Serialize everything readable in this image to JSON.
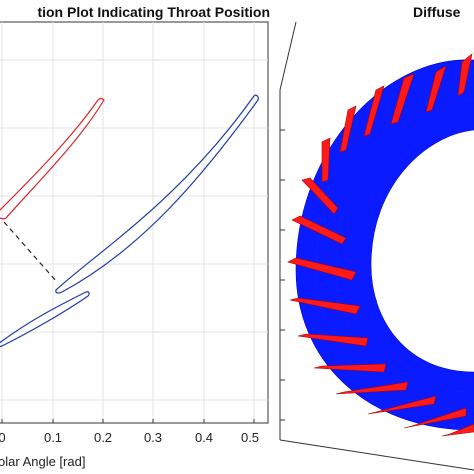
{
  "left_plot": {
    "title": "tion Plot Indicating Throat Position",
    "xlabel": "olar Angle [rad]",
    "x_ticks": [
      "0",
      "0.1",
      "0.2",
      "0.3",
      "0.4",
      "0.5"
    ]
  },
  "right_plot": {
    "title": "Diffuse"
  },
  "colors": {
    "red_blade": "#d62728",
    "blue_blade": "#1f3aa6",
    "diffuser_blue": "#0000ff",
    "diffuser_red": "#ff1a1a",
    "grid": "#e6e6e6"
  }
}
